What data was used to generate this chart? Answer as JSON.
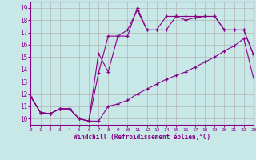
{
  "xlabel": "Windchill (Refroidissement éolien,°C)",
  "background_color": "#c8e8e8",
  "line_color": "#880088",
  "grid_color": "#aaaaaa",
  "xlim": [
    0,
    23
  ],
  "ylim": [
    9.5,
    19.5
  ],
  "xticks": [
    0,
    1,
    2,
    3,
    4,
    5,
    6,
    7,
    8,
    9,
    10,
    11,
    12,
    13,
    14,
    15,
    16,
    17,
    18,
    19,
    20,
    21,
    22,
    23
  ],
  "yticks": [
    10,
    11,
    12,
    13,
    14,
    15,
    16,
    17,
    18,
    19
  ],
  "line1_x": [
    0,
    1,
    2,
    3,
    4,
    5,
    6,
    7,
    8,
    9,
    10,
    11,
    12,
    13,
    14,
    15,
    16,
    17,
    18,
    19,
    20,
    21,
    22,
    23
  ],
  "line1_y": [
    11.8,
    10.5,
    10.4,
    10.8,
    10.8,
    10.0,
    9.8,
    9.8,
    11.0,
    11.2,
    11.5,
    12.0,
    12.4,
    12.8,
    13.2,
    13.5,
    13.8,
    14.2,
    14.6,
    15.0,
    15.5,
    15.9,
    16.5,
    13.3
  ],
  "line2_x": [
    0,
    1,
    2,
    3,
    4,
    5,
    6,
    7,
    8,
    9,
    10,
    11,
    12,
    13,
    14,
    15,
    16,
    17,
    18,
    19,
    20,
    21,
    22,
    23
  ],
  "line2_y": [
    11.8,
    10.5,
    10.4,
    10.8,
    10.8,
    10.0,
    9.8,
    13.7,
    16.7,
    16.7,
    17.2,
    18.8,
    17.2,
    17.2,
    17.2,
    18.3,
    18.0,
    18.2,
    18.3,
    18.3,
    17.2,
    17.2,
    17.2,
    15.2
  ],
  "line3_x": [
    0,
    1,
    2,
    3,
    4,
    5,
    6,
    7,
    8,
    9,
    10,
    11,
    12,
    13,
    14,
    15,
    16,
    17,
    18,
    19,
    20,
    21,
    22,
    23
  ],
  "line3_y": [
    11.8,
    10.5,
    10.4,
    10.8,
    10.8,
    10.0,
    9.8,
    15.3,
    13.8,
    16.7,
    16.7,
    19.0,
    17.2,
    17.2,
    18.3,
    18.3,
    18.3,
    18.3,
    18.3,
    18.3,
    17.2,
    17.2,
    17.2,
    15.2
  ]
}
